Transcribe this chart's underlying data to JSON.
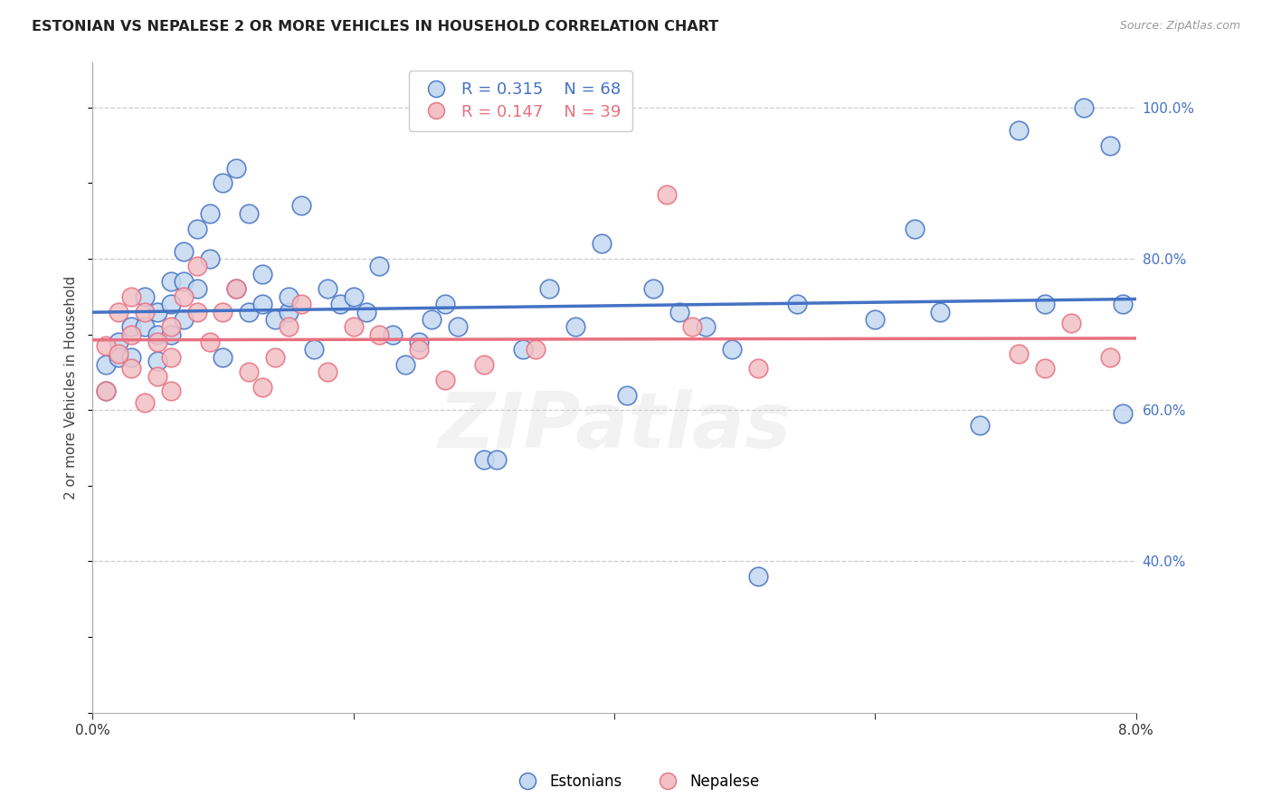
{
  "title": "ESTONIAN VS NEPALESE 2 OR MORE VEHICLES IN HOUSEHOLD CORRELATION CHART",
  "source": "Source: ZipAtlas.com",
  "ylabel": "2 or more Vehicles in Household",
  "xmin": 0.0,
  "xmax": 0.08,
  "ymin": 0.2,
  "ymax": 1.06,
  "yticks": [
    0.4,
    0.6,
    0.8,
    1.0
  ],
  "xticks": [
    0.0,
    0.02,
    0.04,
    0.06,
    0.08
  ],
  "legend_r1_val": "0.315",
  "legend_n1_val": "68",
  "legend_r2_val": "0.147",
  "legend_n2_val": "39",
  "blue_fill": "#C5D9F1",
  "blue_edge": "#4472C4",
  "blue_line": "#4472C4",
  "pink_fill": "#F2C0C5",
  "pink_edge": "#E87080",
  "pink_line": "#E87080",
  "right_axis_color": "#4472C4",
  "grid_color": "#CCCCCC",
  "watermark": "ZIPatlas",
  "estonian_x": [
    0.001,
    0.001,
    0.002,
    0.002,
    0.003,
    0.003,
    0.004,
    0.004,
    0.005,
    0.005,
    0.005,
    0.006,
    0.006,
    0.006,
    0.007,
    0.007,
    0.007,
    0.008,
    0.008,
    0.009,
    0.009,
    0.01,
    0.01,
    0.011,
    0.011,
    0.012,
    0.012,
    0.013,
    0.013,
    0.014,
    0.015,
    0.015,
    0.016,
    0.017,
    0.018,
    0.019,
    0.02,
    0.021,
    0.022,
    0.023,
    0.024,
    0.025,
    0.026,
    0.027,
    0.028,
    0.03,
    0.031,
    0.033,
    0.035,
    0.037,
    0.039,
    0.041,
    0.043,
    0.045,
    0.047,
    0.049,
    0.051,
    0.054,
    0.06,
    0.063,
    0.065,
    0.068,
    0.071,
    0.073,
    0.076,
    0.078,
    0.079,
    0.079
  ],
  "estonian_y": [
    0.625,
    0.66,
    0.69,
    0.67,
    0.71,
    0.67,
    0.75,
    0.71,
    0.73,
    0.7,
    0.665,
    0.77,
    0.74,
    0.7,
    0.81,
    0.77,
    0.72,
    0.84,
    0.76,
    0.86,
    0.8,
    0.9,
    0.67,
    0.92,
    0.76,
    0.86,
    0.73,
    0.78,
    0.74,
    0.72,
    0.73,
    0.75,
    0.87,
    0.68,
    0.76,
    0.74,
    0.75,
    0.73,
    0.79,
    0.7,
    0.66,
    0.69,
    0.72,
    0.74,
    0.71,
    0.535,
    0.535,
    0.68,
    0.76,
    0.71,
    0.82,
    0.62,
    0.76,
    0.73,
    0.71,
    0.68,
    0.38,
    0.74,
    0.72,
    0.84,
    0.73,
    0.58,
    0.97,
    0.74,
    1.0,
    0.95,
    0.74,
    0.595
  ],
  "nepalese_x": [
    0.001,
    0.001,
    0.002,
    0.002,
    0.003,
    0.003,
    0.003,
    0.004,
    0.004,
    0.005,
    0.005,
    0.006,
    0.006,
    0.006,
    0.007,
    0.008,
    0.008,
    0.009,
    0.01,
    0.011,
    0.012,
    0.013,
    0.014,
    0.015,
    0.016,
    0.018,
    0.02,
    0.022,
    0.025,
    0.027,
    0.03,
    0.034,
    0.044,
    0.046,
    0.051,
    0.071,
    0.073,
    0.075,
    0.078
  ],
  "nepalese_y": [
    0.625,
    0.685,
    0.73,
    0.675,
    0.75,
    0.7,
    0.655,
    0.61,
    0.73,
    0.69,
    0.645,
    0.71,
    0.67,
    0.625,
    0.75,
    0.79,
    0.73,
    0.69,
    0.73,
    0.76,
    0.65,
    0.63,
    0.67,
    0.71,
    0.74,
    0.65,
    0.71,
    0.7,
    0.68,
    0.64,
    0.66,
    0.68,
    0.885,
    0.71,
    0.655,
    0.675,
    0.655,
    0.715,
    0.67
  ]
}
